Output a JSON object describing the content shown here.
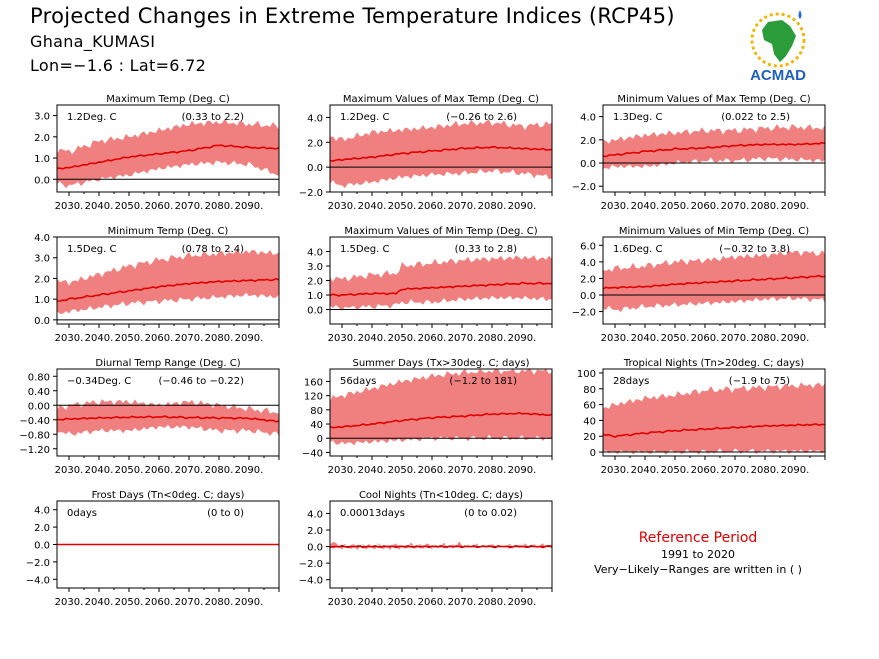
{
  "header": {
    "title": "Projected Changes in Extreme Temperature Indices (RCP45)",
    "location": "Ghana_KUMASI",
    "coords": "Lon=−1.6 : Lat=6.72"
  },
  "logo": {
    "text": "ACMAD",
    "icon": "acmad-africa-logo"
  },
  "reference": {
    "title": "Reference Period",
    "years": "1991 to 2020",
    "note": "Very−Likely−Ranges are written in ( )"
  },
  "colors": {
    "median": "#e00000",
    "range": "#f08080",
    "zero_line": "#000000"
  },
  "x_ticks": [
    "2030.",
    "2040.",
    "2050.",
    "2060.",
    "2070.",
    "2080.",
    "2090."
  ],
  "chart_data": [
    {
      "type": "area",
      "title": "Maximum Temp (Deg. C)",
      "value_label": "1.2Deg. C",
      "range_label": "(0.33 to 2.2)",
      "xlim": [
        2026,
        2100
      ],
      "ylim": [
        -0.6,
        3.5
      ],
      "y_ticks": [
        "3.0",
        "2.0",
        "1.0",
        "0.0"
      ],
      "y_tick_values": [
        3,
        2,
        1,
        0
      ],
      "series": {
        "median": {
          "x": [
            2026,
            2030,
            2040,
            2050,
            2060,
            2070,
            2080,
            2090,
            2100
          ],
          "y": [
            0.5,
            0.55,
            0.8,
            1.05,
            1.2,
            1.35,
            1.6,
            1.5,
            1.45
          ]
        },
        "upper": {
          "x": [
            2026,
            2030,
            2040,
            2050,
            2060,
            2070,
            2080,
            2090,
            2100
          ],
          "y": [
            1.4,
            1.3,
            1.8,
            2.0,
            2.3,
            2.6,
            2.7,
            2.6,
            2.5
          ]
        },
        "lower": {
          "x": [
            2026,
            2030,
            2040,
            2050,
            2060,
            2070,
            2080,
            2090,
            2100
          ],
          "y": [
            -0.2,
            -0.3,
            0.0,
            0.2,
            0.5,
            0.7,
            0.8,
            0.7,
            0.2
          ]
        }
      }
    },
    {
      "type": "area",
      "title": "Maximum Values of Max Temp (Deg. C)",
      "value_label": "1.2Deg. C",
      "range_label": "(−0.26 to 2.6)",
      "xlim": [
        2026,
        2100
      ],
      "ylim": [
        -2.0,
        5.0
      ],
      "y_ticks": [
        "4.0",
        "2.0",
        "0.0",
        "−2.0"
      ],
      "y_tick_values": [
        4,
        2,
        0,
        -2
      ],
      "series": {
        "median": {
          "x": [
            2026,
            2030,
            2040,
            2050,
            2060,
            2070,
            2080,
            2090,
            2100
          ],
          "y": [
            0.5,
            0.6,
            0.8,
            1.1,
            1.3,
            1.5,
            1.6,
            1.5,
            1.4
          ]
        },
        "upper": {
          "x": [
            2026,
            2030,
            2040,
            2050,
            2060,
            2070,
            2080,
            2090,
            2100
          ],
          "y": [
            2.5,
            2.2,
            2.8,
            3.0,
            3.2,
            3.5,
            3.6,
            3.3,
            3.5
          ]
        },
        "lower": {
          "x": [
            2026,
            2030,
            2040,
            2050,
            2060,
            2070,
            2080,
            2090,
            2100
          ],
          "y": [
            -1.2,
            -1.5,
            -1.2,
            -0.8,
            -0.6,
            -0.5,
            -0.3,
            -0.5,
            -0.8
          ]
        }
      }
    },
    {
      "type": "area",
      "title": "Minimum Values of Max Temp (Deg. C)",
      "value_label": "1.3Deg. C",
      "range_label": "(0.022 to 2.5)",
      "xlim": [
        2026,
        2100
      ],
      "ylim": [
        -2.5,
        5.0
      ],
      "y_ticks": [
        "4.0",
        "2.0",
        "0.0",
        "−2.0"
      ],
      "y_tick_values": [
        4,
        2,
        0,
        -2
      ],
      "series": {
        "median": {
          "x": [
            2026,
            2030,
            2040,
            2050,
            2060,
            2070,
            2080,
            2090,
            2100
          ],
          "y": [
            0.6,
            0.7,
            1.0,
            1.2,
            1.3,
            1.5,
            1.6,
            1.6,
            1.7
          ]
        },
        "upper": {
          "x": [
            2026,
            2030,
            2040,
            2050,
            2060,
            2070,
            2080,
            2090,
            2100
          ],
          "y": [
            1.8,
            2.0,
            2.4,
            2.6,
            2.8,
            2.8,
            3.0,
            3.1,
            3.0
          ]
        },
        "lower": {
          "x": [
            2026,
            2030,
            2040,
            2050,
            2060,
            2070,
            2080,
            2090,
            2100
          ],
          "y": [
            -0.5,
            -0.3,
            -0.3,
            0.0,
            0.2,
            0.2,
            0.4,
            0.3,
            0.2
          ]
        }
      }
    },
    {
      "type": "area",
      "title": "Minimum Temp (Deg. C)",
      "value_label": "1.5Deg. C",
      "range_label": "(0.78 to 2.4)",
      "xlim": [
        2026,
        2100
      ],
      "ylim": [
        -0.2,
        4.0
      ],
      "y_ticks": [
        "4.0",
        "3.0",
        "2.0",
        "1.0",
        "0.0"
      ],
      "y_tick_values": [
        4,
        3,
        2,
        1,
        0
      ],
      "series": {
        "median": {
          "x": [
            2026,
            2030,
            2040,
            2050,
            2060,
            2070,
            2080,
            2090,
            2100
          ],
          "y": [
            0.9,
            1.0,
            1.2,
            1.4,
            1.6,
            1.75,
            1.85,
            1.9,
            1.95
          ]
        },
        "upper": {
          "x": [
            2026,
            2030,
            2040,
            2050,
            2060,
            2070,
            2080,
            2090,
            2100
          ],
          "y": [
            1.9,
            1.8,
            2.2,
            2.6,
            2.9,
            3.1,
            3.2,
            3.3,
            3.2
          ]
        },
        "lower": {
          "x": [
            2026,
            2030,
            2040,
            2050,
            2060,
            2070,
            2080,
            2090,
            2100
          ],
          "y": [
            0.3,
            0.4,
            0.6,
            0.8,
            0.9,
            1.0,
            1.1,
            1.2,
            1.1
          ]
        }
      }
    },
    {
      "type": "area",
      "title": "Maximum Values of Min Temp (Deg. C)",
      "value_label": "1.5Deg. C",
      "range_label": "(0.33 to 2.8)",
      "xlim": [
        2026,
        2100
      ],
      "ylim": [
        -1.0,
        5.0
      ],
      "y_ticks": [
        "4.0",
        "3.0",
        "2.0",
        "1.0",
        "0.0"
      ],
      "y_tick_values": [
        4,
        3,
        2,
        1,
        0
      ],
      "series": {
        "median": {
          "x": [
            2026,
            2030,
            2040,
            2048,
            2050,
            2060,
            2070,
            2080,
            2090,
            2100
          ],
          "y": [
            1.0,
            1.0,
            1.1,
            1.1,
            1.4,
            1.5,
            1.6,
            1.7,
            1.8,
            1.8
          ]
        },
        "upper": {
          "x": [
            2026,
            2030,
            2040,
            2048,
            2050,
            2060,
            2070,
            2080,
            2090,
            2100
          ],
          "y": [
            2.2,
            2.1,
            2.4,
            2.5,
            3.0,
            3.2,
            3.4,
            3.5,
            3.6,
            3.5
          ]
        },
        "lower": {
          "x": [
            2026,
            2030,
            2040,
            2048,
            2050,
            2060,
            2070,
            2080,
            2090,
            2100
          ],
          "y": [
            0.2,
            0.1,
            0.2,
            0.3,
            0.5,
            0.5,
            0.7,
            0.8,
            0.8,
            0.7
          ]
        }
      }
    },
    {
      "type": "area",
      "title": "Minimum Values of Min Temp (Deg. C)",
      "value_label": "1.6Deg. C",
      "range_label": "(−0.32 to 3.8)",
      "xlim": [
        2026,
        2100
      ],
      "ylim": [
        -3.5,
        7.0
      ],
      "y_ticks": [
        "6.0",
        "4.0",
        "2.0",
        "0.0",
        "−2.0"
      ],
      "y_tick_values": [
        6,
        4,
        2,
        0,
        -2
      ],
      "series": {
        "median": {
          "x": [
            2026,
            2030,
            2040,
            2050,
            2060,
            2070,
            2080,
            2090,
            2100
          ],
          "y": [
            0.8,
            0.9,
            1.0,
            1.3,
            1.5,
            1.7,
            1.9,
            2.1,
            2.3
          ]
        },
        "upper": {
          "x": [
            2026,
            2030,
            2040,
            2050,
            2060,
            2070,
            2080,
            2090,
            2100
          ],
          "y": [
            3.0,
            3.2,
            3.5,
            4.0,
            4.2,
            4.6,
            4.8,
            5.2,
            5.0
          ]
        },
        "lower": {
          "x": [
            2026,
            2030,
            2040,
            2050,
            2060,
            2070,
            2080,
            2090,
            2100
          ],
          "y": [
            -1.5,
            -1.8,
            -1.4,
            -1.2,
            -1.0,
            -0.8,
            -0.5,
            -0.4,
            -0.6
          ]
        }
      }
    },
    {
      "type": "area",
      "title": "Diurnal Temp Range (Deg. C)",
      "value_label": "−0.34Deg. C",
      "range_label": "(−0.46 to −0.22)",
      "xlim": [
        2026,
        2100
      ],
      "ylim": [
        -1.4,
        1.0
      ],
      "y_ticks": [
        "0.80",
        "0.40",
        "0.00",
        "−0.40",
        "−0.80",
        "−1.20"
      ],
      "y_tick_values": [
        0.8,
        0.4,
        0,
        -0.4,
        -0.8,
        -1.2
      ],
      "series": {
        "median": {
          "x": [
            2026,
            2030,
            2040,
            2050,
            2060,
            2070,
            2080,
            2090,
            2100
          ],
          "y": [
            -0.4,
            -0.38,
            -0.35,
            -0.33,
            -0.32,
            -0.34,
            -0.35,
            -0.36,
            -0.45
          ]
        },
        "upper": {
          "x": [
            2026,
            2030,
            2040,
            2050,
            2060,
            2070,
            2080,
            2090,
            2100
          ],
          "y": [
            -0.1,
            0.0,
            0.1,
            0.1,
            0.0,
            0.1,
            0.0,
            -0.1,
            -0.2
          ]
        },
        "lower": {
          "x": [
            2026,
            2030,
            2040,
            2050,
            2060,
            2070,
            2080,
            2090,
            2100
          ],
          "y": [
            -0.7,
            -0.8,
            -0.7,
            -0.7,
            -0.6,
            -0.6,
            -0.7,
            -0.7,
            -0.8
          ]
        }
      }
    },
    {
      "type": "area",
      "title": "Summer Days (Tx>30deg. C; days)",
      "value_label": "56days",
      "range_label": "(−1.2 to 181)",
      "xlim": [
        2026,
        2100
      ],
      "ylim": [
        -50,
        195
      ],
      "y_ticks": [
        "160",
        "120",
        "80",
        "40",
        "0",
        "−40"
      ],
      "y_tick_values": [
        160,
        120,
        80,
        40,
        0,
        -40
      ],
      "series": {
        "median": {
          "x": [
            2026,
            2030,
            2040,
            2050,
            2060,
            2070,
            2080,
            2090,
            2100
          ],
          "y": [
            30,
            32,
            40,
            50,
            58,
            62,
            68,
            70,
            65
          ]
        },
        "upper": {
          "x": [
            2026,
            2030,
            2040,
            2050,
            2060,
            2070,
            2080,
            2090,
            2100
          ],
          "y": [
            110,
            120,
            140,
            160,
            175,
            185,
            190,
            190,
            190
          ]
        },
        "lower": {
          "x": [
            2026,
            2030,
            2040,
            2050,
            2060,
            2070,
            2080,
            2090,
            2100
          ],
          "y": [
            -10,
            -15,
            -10,
            -5,
            0,
            0,
            0,
            0,
            0
          ]
        }
      }
    },
    {
      "type": "area",
      "title": "Tropical Nights (Tn>20deg. C; days)",
      "value_label": "28days",
      "range_label": "(−1.9 to 75)",
      "xlim": [
        2026,
        2100
      ],
      "ylim": [
        -5,
        105
      ],
      "y_ticks": [
        "100",
        "80",
        "60",
        "40",
        "20",
        "0"
      ],
      "y_tick_values": [
        100,
        80,
        60,
        40,
        20,
        0
      ],
      "series": {
        "median": {
          "x": [
            2026,
            2030,
            2040,
            2050,
            2060,
            2070,
            2080,
            2090,
            2100
          ],
          "y": [
            22,
            20,
            24,
            27,
            29,
            31,
            33,
            34,
            35
          ]
        },
        "upper": {
          "x": [
            2026,
            2030,
            2040,
            2050,
            2060,
            2070,
            2080,
            2090,
            2100
          ],
          "y": [
            55,
            60,
            68,
            72,
            78,
            80,
            82,
            84,
            85
          ]
        },
        "lower": {
          "x": [
            2026,
            2030,
            2040,
            2050,
            2060,
            2070,
            2080,
            2090,
            2100
          ],
          "y": [
            0,
            0,
            0,
            0,
            0,
            1,
            1,
            1,
            1
          ]
        }
      }
    },
    {
      "type": "area",
      "title": "Frost Days (Tn<0deg. C; days)",
      "value_label": "0days",
      "range_label": "(0 to 0)",
      "xlim": [
        2026,
        2100
      ],
      "ylim": [
        -5,
        5
      ],
      "y_ticks": [
        "4.0",
        "2.0",
        "0.0",
        "−2.0",
        "−4.0"
      ],
      "y_tick_values": [
        4,
        2,
        0,
        -2,
        -4
      ],
      "series": {
        "median": {
          "x": [
            2026,
            2100
          ],
          "y": [
            0,
            0
          ]
        },
        "upper": {
          "x": [
            2026,
            2100
          ],
          "y": [
            0.05,
            0.05
          ]
        },
        "lower": {
          "x": [
            2026,
            2100
          ],
          "y": [
            0,
            0
          ]
        }
      }
    },
    {
      "type": "area",
      "title": "Cool Nights (Tn<10deg. C; days)",
      "value_label": "0.00013days",
      "range_label": "(0 to 0.02)",
      "xlim": [
        2026,
        2100
      ],
      "ylim": [
        -5,
        5.5
      ],
      "y_ticks": [
        "4.0",
        "2.0",
        "0.0",
        "−2.0",
        "−4.0"
      ],
      "y_tick_values": [
        4,
        2,
        0,
        -2,
        -4
      ],
      "series": {
        "median": {
          "x": [
            2026,
            2100
          ],
          "y": [
            0,
            0
          ]
        },
        "upper": {
          "x": [
            2026,
            2027,
            2028,
            2029,
            2030,
            2068,
            2069,
            2070,
            2100
          ],
          "y": [
            0.05,
            0.7,
            0.1,
            0.05,
            0.05,
            0.05,
            0.3,
            0.05,
            0.05
          ]
        },
        "lower": {
          "x": [
            2026,
            2100
          ],
          "y": [
            0,
            0
          ]
        }
      }
    }
  ]
}
